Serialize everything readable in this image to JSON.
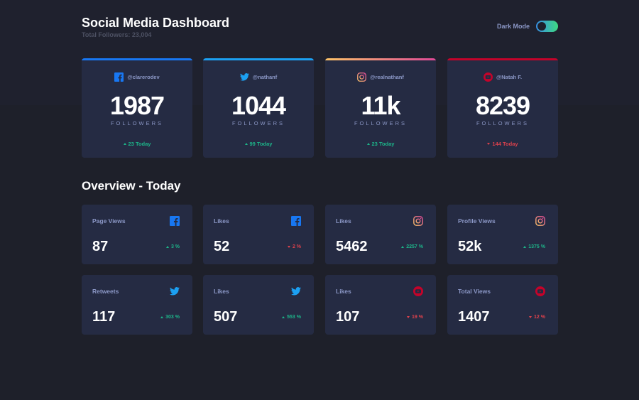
{
  "header": {
    "title": "Social Media Dashboard",
    "subtitle": "Total Followers: 23,004",
    "dark_mode_label": "Dark Mode"
  },
  "colors": {
    "facebook": "#1877f2",
    "twitter": "#1ca0f2",
    "instagram_start": "#fdc468",
    "instagram_end": "#df4996",
    "youtube": "#c4032a",
    "up": "#1db489",
    "down": "#dc414c"
  },
  "followers": [
    {
      "platform": "facebook",
      "icon": "facebook-icon",
      "handle": "@clarerodev",
      "count": "1987",
      "unit": "FOLLOWERS",
      "change": "23 Today",
      "trend": "up"
    },
    {
      "platform": "twitter",
      "icon": "twitter-icon",
      "handle": "@nathanf",
      "count": "1044",
      "unit": "FOLLOWERS",
      "change": "99 Today",
      "trend": "up"
    },
    {
      "platform": "instagram",
      "icon": "instagram-icon",
      "handle": "@realnathanf",
      "count": "11k",
      "unit": "FOLLOWERS",
      "change": "23 Today",
      "trend": "up"
    },
    {
      "platform": "youtube",
      "icon": "youtube-icon",
      "handle": "@Natah F.",
      "count": "8239",
      "unit": "FOLLOWERS",
      "change": "144 Today",
      "trend": "down"
    }
  ],
  "overview": {
    "title": "Overview - Today",
    "cards": [
      {
        "label": "Page Views",
        "icon": "facebook-icon",
        "value": "87",
        "pct": "3 %",
        "trend": "up"
      },
      {
        "label": "Likes",
        "icon": "facebook-icon",
        "value": "52",
        "pct": "2 %",
        "trend": "down"
      },
      {
        "label": "Likes",
        "icon": "instagram-icon",
        "value": "5462",
        "pct": "2257 %",
        "trend": "up"
      },
      {
        "label": "Profile Views",
        "icon": "instagram-icon",
        "value": "52k",
        "pct": "1375 %",
        "trend": "up"
      },
      {
        "label": "Retweets",
        "icon": "twitter-icon",
        "value": "117",
        "pct": "303 %",
        "trend": "up"
      },
      {
        "label": "Likes",
        "icon": "twitter-icon",
        "value": "507",
        "pct": "553 %",
        "trend": "up"
      },
      {
        "label": "Likes",
        "icon": "youtube-icon",
        "value": "107",
        "pct": "19 %",
        "trend": "down"
      },
      {
        "label": "Total Views",
        "icon": "youtube-icon",
        "value": "1407",
        "pct": "12 %",
        "trend": "down"
      }
    ]
  }
}
